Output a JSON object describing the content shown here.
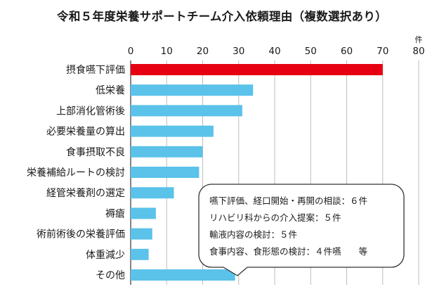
{
  "chart_data": {
    "type": "bar",
    "orientation": "horizontal",
    "title": "令和５年度栄養サポートチーム介入依頼理由（複数選択あり）",
    "unit": "件",
    "xlim": [
      0,
      80
    ],
    "xticks": [
      0,
      10,
      20,
      30,
      40,
      50,
      60,
      70,
      80
    ],
    "grid": true,
    "categories": [
      "摂食嚥下評価",
      "低栄養",
      "上部消化管術後",
      "必要栄養量の算出",
      "食事摂取不良",
      "栄養補給ルートの検討",
      "経管栄養剤の選定",
      "褥瘡",
      "術前術後の栄養評価",
      "体重減少",
      "その他"
    ],
    "values": [
      70,
      34,
      31,
      23,
      20,
      19,
      12,
      7,
      6,
      5,
      29
    ],
    "colors": [
      "#e60012",
      "#5bc2ea",
      "#5bc2ea",
      "#5bc2ea",
      "#5bc2ea",
      "#5bc2ea",
      "#5bc2ea",
      "#5bc2ea",
      "#5bc2ea",
      "#5bc2ea",
      "#5bc2ea"
    ],
    "annotation": {
      "lines": [
        "嚥下評価、経口開始・再開の相談：６件",
        "リハビリ科からの介入提案：５件",
        "輸液内容の検討：５件",
        "食事内容、食形態の検討：４件嚥　　等"
      ]
    }
  }
}
